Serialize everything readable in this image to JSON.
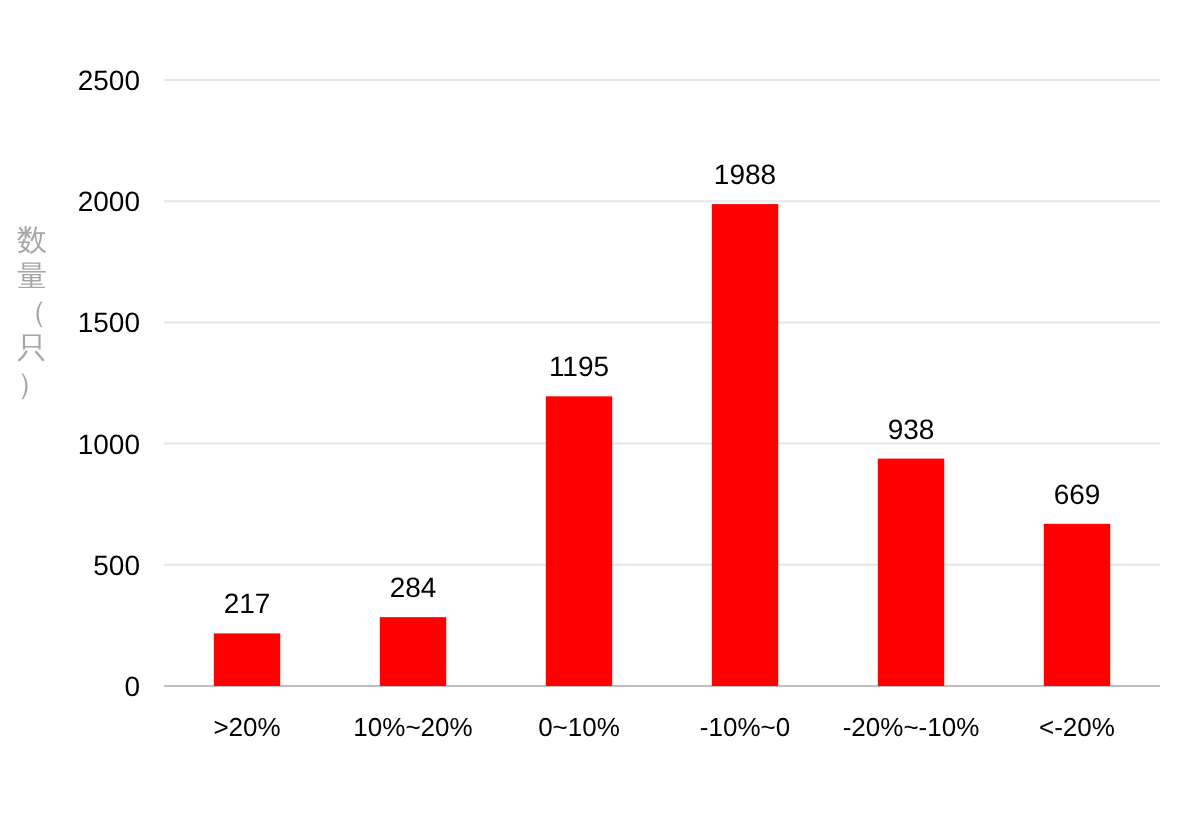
{
  "chart_data": {
    "type": "bar",
    "ylabel": "数量（只）",
    "categories": [
      ">20%",
      "10%~20%",
      "0~10%",
      "-10%~0",
      "-20%~-10%",
      "<-20%"
    ],
    "values": [
      217,
      284,
      1195,
      1988,
      938,
      669
    ],
    "color": "#ff0000",
    "ylim": [
      0,
      2500
    ],
    "yticks": [
      0,
      500,
      1000,
      1500,
      2000,
      2500
    ],
    "grid": "y",
    "data_labels": true
  }
}
